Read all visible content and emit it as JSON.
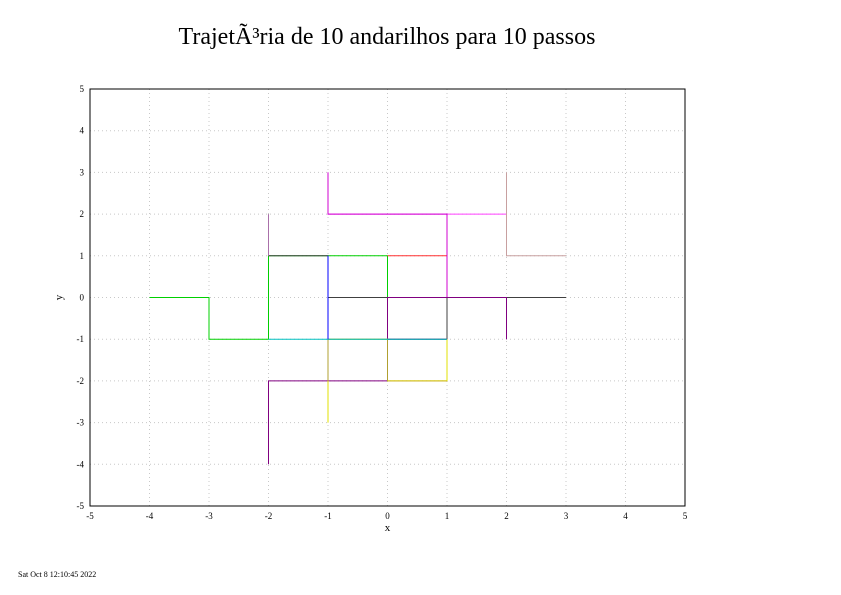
{
  "timestamp": "Sat Oct  8 12:10:45 2022",
  "chart_data": {
    "type": "line",
    "title": "TrajetÃ³ria de 10 andarilhos para 10 passos",
    "xlabel": "x",
    "ylabel": "y",
    "xlim": [
      -5,
      5
    ],
    "ylim": [
      -5,
      5
    ],
    "xticks": [
      "-5",
      "-4",
      "-3",
      "-2",
      "-1",
      "0",
      "1",
      "2",
      "3",
      "4",
      "5"
    ],
    "yticks": [
      "-5",
      "-4",
      "-3",
      "-2",
      "-1",
      "0",
      "1",
      "2",
      "3",
      "4",
      "5"
    ],
    "grid": true,
    "series": [
      {
        "color": "#00d000",
        "x": [
          -4,
          -3,
          -3,
          -2,
          -2,
          -1,
          0,
          0,
          -1
        ],
        "y": [
          0,
          0,
          -1,
          -1,
          1,
          1,
          1,
          0,
          0
        ]
      },
      {
        "color": "#404040",
        "x": [
          -2,
          -1,
          -1,
          0,
          0,
          1,
          1,
          1,
          2,
          3
        ],
        "y": [
          1,
          1,
          0,
          0,
          -1,
          -1,
          -1,
          0,
          0,
          0
        ]
      },
      {
        "color": "#ff3030",
        "x": [
          0,
          1,
          1
        ],
        "y": [
          1,
          1,
          0
        ]
      },
      {
        "color": "#ff40ff",
        "x": [
          -1,
          -1,
          0,
          1,
          2,
          2
        ],
        "y": [
          3,
          2,
          2,
          2,
          2,
          1
        ]
      },
      {
        "color": "#d000d0",
        "x": [
          -1,
          -1,
          0,
          1,
          1
        ],
        "y": [
          3,
          2,
          2,
          2,
          0
        ]
      },
      {
        "color": "#aa70aa",
        "x": [
          -2,
          -2
        ],
        "y": [
          2,
          1
        ]
      },
      {
        "color": "#c8a0a0",
        "x": [
          2,
          2,
          3
        ],
        "y": [
          3,
          1,
          1
        ]
      },
      {
        "color": "#800080",
        "x": [
          -2,
          -2,
          -1,
          0,
          1,
          1,
          0,
          0,
          1,
          2,
          2
        ],
        "y": [
          -4,
          -2,
          -2,
          -2,
          -2,
          -1,
          -1,
          0,
          0,
          0,
          -1
        ]
      },
      {
        "color": "#e0e000",
        "x": [
          -1,
          -1,
          0,
          0,
          1,
          1
        ],
        "y": [
          -3,
          -1,
          -1,
          -2,
          -2,
          -1
        ]
      },
      {
        "color": "#b0a030",
        "x": [
          -1,
          -1,
          0,
          0
        ],
        "y": [
          -2,
          -1,
          -1,
          -2
        ]
      },
      {
        "color": "#00c0c0",
        "x": [
          -2,
          -1,
          0,
          1
        ],
        "y": [
          -1,
          -1,
          -1,
          -1
        ]
      },
      {
        "color": "#0000ff",
        "x": [
          -1,
          -1
        ],
        "y": [
          1,
          -1
        ]
      }
    ]
  }
}
